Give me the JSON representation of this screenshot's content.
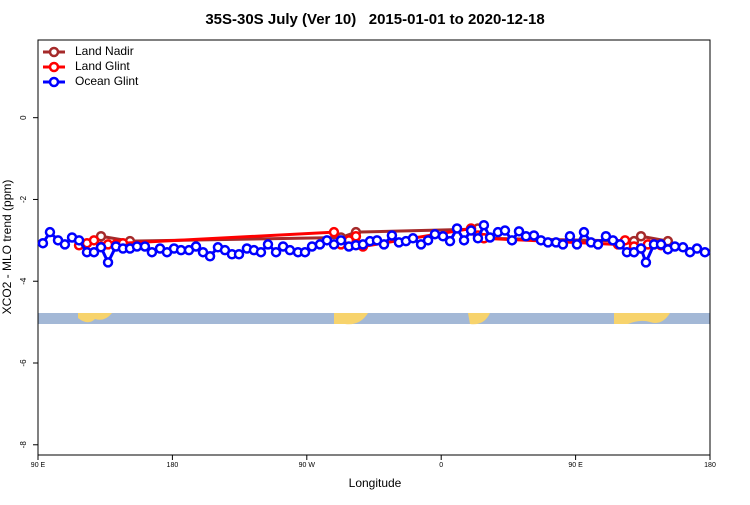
{
  "chart_data": {
    "type": "line",
    "title": "35S-30S July (Ver 10)   2015-01-01 to 2020-12-18",
    "x_label": "Longitude",
    "y_label": "XCO2 - MLO trend (ppm)",
    "xlim": [
      90,
      540
    ],
    "xticks": [
      {
        "value": 90,
        "label": "90 E"
      },
      180,
      {
        "value": 270,
        "label": "90 W"
      },
      {
        "value": 360,
        "label": "0"
      },
      {
        "value": 450,
        "label": "90 E"
      },
      {
        "value": 540,
        "label": "180"
      }
    ],
    "ylim": [
      -8.25,
      1.9
    ],
    "yticks": [
      0,
      -2,
      -4,
      -6,
      -8
    ],
    "legend": "upper-left",
    "series": [
      {
        "name": "Land Nadir",
        "color": "#a52a2a",
        "x": [
          132.2,
          151.6,
          292.9,
          302.9,
          380,
          384.6,
          388.6,
          489.1,
          493.8,
          511.8
        ],
        "values": [
          -2.9,
          -3.02,
          -2.93,
          -2.8,
          -2.73,
          -2.71,
          -2.95,
          -3.02,
          -2.9,
          -3.02
        ]
      },
      {
        "name": "Land Glint",
        "color": "#ff0000",
        "x": [
          117.5,
          122.8,
          127.5,
          132.2,
          136.9,
          142.2,
          146.9,
          288.2,
          292.9,
          298.2,
          302.9,
          307.6,
          380,
          384.6,
          388.6,
          478.4,
          483.1,
          489.1,
          493.8,
          498.4,
          502.5,
          507.2
        ],
        "values": [
          -3.12,
          -3.07,
          -3.0,
          -3.15,
          -3.1,
          -3.1,
          -3.07,
          -2.8,
          -3.1,
          -3.0,
          -2.9,
          -3.15,
          -2.71,
          -2.88,
          -2.95,
          -3.1,
          -3.0,
          -3.15,
          -3.2,
          -3.1,
          -3.1,
          -3.12
        ]
      },
      {
        "name": "Ocean Glint",
        "color": "#0000ff",
        "x": [
          93.3,
          98,
          103.4,
          108,
          112.8,
          117.5,
          122.8,
          127.5,
          132.2,
          136.9,
          142.2,
          146.9,
          151.6,
          156.3,
          161.6,
          166.3,
          171.7,
          176.4,
          181.1,
          185.8,
          191.1,
          195.8,
          200.5,
          205.2,
          210.5,
          215.2,
          219.9,
          224.6,
          229.9,
          234.6,
          239.3,
          244,
          249.4,
          254.1,
          258.7,
          264.1,
          268.8,
          273.5,
          278.8,
          283.5,
          288.2,
          292.9,
          298.2,
          302.9,
          307.6,
          312.3,
          317,
          321.7,
          327,
          331.7,
          336.4,
          341.1,
          346.5,
          351.2,
          355.8,
          361.2,
          365.9,
          370.6,
          375.3,
          380,
          384.6,
          388.6,
          392.7,
          398,
          402.7,
          407.4,
          412.1,
          416.8,
          422.1,
          426.8,
          431.5,
          436.9,
          441.5,
          446.2,
          450.9,
          455.6,
          460.3,
          465,
          470.3,
          475,
          479.7,
          484.4,
          489.1,
          493.8,
          497.1,
          502.5,
          507.2,
          511.8,
          516.5,
          521.9,
          526.6,
          531.3,
          536.6
        ],
        "values": [
          -3.07,
          -2.8,
          -3.0,
          -3.1,
          -2.93,
          -3.0,
          -3.29,
          -3.29,
          -3.17,
          -3.54,
          -3.15,
          -3.2,
          -3.2,
          -3.15,
          -3.15,
          -3.29,
          -3.2,
          -3.29,
          -3.2,
          -3.24,
          -3.24,
          -3.15,
          -3.29,
          -3.39,
          -3.17,
          -3.24,
          -3.34,
          -3.34,
          -3.2,
          -3.24,
          -3.29,
          -3.1,
          -3.29,
          -3.15,
          -3.24,
          -3.29,
          -3.29,
          -3.15,
          -3.1,
          -3.0,
          -3.1,
          -3.0,
          -3.15,
          -3.12,
          -3.1,
          -3.02,
          -3.0,
          -3.1,
          -2.88,
          -3.05,
          -3.02,
          -2.95,
          -3.1,
          -3.0,
          -2.85,
          -2.9,
          -3.02,
          -2.71,
          -3.0,
          -2.76,
          -2.95,
          -2.63,
          -2.93,
          -2.8,
          -2.76,
          -3.0,
          -2.78,
          -2.9,
          -2.88,
          -3.0,
          -3.05,
          -3.05,
          -3.1,
          -2.9,
          -3.1,
          -2.8,
          -3.05,
          -3.1,
          -2.9,
          -3.0,
          -3.1,
          -3.29,
          -3.29,
          -3.2,
          -3.54,
          -3.1,
          -3.1,
          -3.22,
          -3.15,
          -3.17,
          -3.29,
          -3.2,
          -3.29
        ]
      }
    ]
  }
}
